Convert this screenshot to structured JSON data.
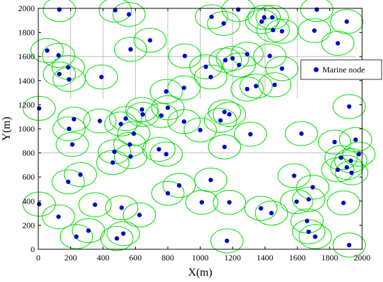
{
  "chart_data": {
    "type": "scatter",
    "xlabel": "X(m)",
    "ylabel": "Y(m)",
    "xlim": [
      0,
      2000
    ],
    "ylim": [
      0,
      2000
    ],
    "xticks": [
      0,
      200,
      400,
      600,
      800,
      1000,
      1200,
      1400,
      1600,
      1800,
      2000
    ],
    "yticks": [
      0,
      200,
      400,
      600,
      800,
      1000,
      1200,
      1400,
      1600,
      1800,
      2000
    ],
    "legend": {
      "position": "right",
      "entries": [
        "Marine node"
      ]
    },
    "colors": {
      "node": "#0000cc",
      "range": "#00dd00",
      "grid": "#b0b0b0",
      "axis": "#000000"
    },
    "range_radius": 100,
    "grid_lines": {
      "vertical": [
        {
          "x": 200,
          "y0": 1250,
          "y1": 2000
        },
        {
          "x": 400,
          "y0": 1250,
          "y1": 2000
        },
        {
          "x": 600,
          "y0": 1250,
          "y1": 2000
        },
        {
          "x": 800,
          "y0": 1250,
          "y1": 2000
        },
        {
          "x": 1000,
          "y0": 1250,
          "y1": 2000
        },
        {
          "x": 1200,
          "y0": 1250,
          "y1": 2000
        },
        {
          "x": 1400,
          "y0": 1250,
          "y1": 2000
        },
        {
          "x": 1600,
          "y0": 1250,
          "y1": 2000
        }
      ],
      "horizontal": [
        {
          "y": 1600,
          "x0": 0,
          "x1": 1960
        },
        {
          "y": 800,
          "x0": 0,
          "x1": 2000
        }
      ]
    },
    "series": [
      {
        "name": "Marine node",
        "points": [
          {
            "x": 130,
            "y": 1990
          },
          {
            "x": 475,
            "y": 1985
          },
          {
            "x": 560,
            "y": 1950
          },
          {
            "x": 1070,
            "y": 1930
          },
          {
            "x": 1145,
            "y": 1875
          },
          {
            "x": 1235,
            "y": 1990
          },
          {
            "x": 1395,
            "y": 1925
          },
          {
            "x": 1445,
            "y": 1925
          },
          {
            "x": 1380,
            "y": 1890
          },
          {
            "x": 1450,
            "y": 1820
          },
          {
            "x": 1505,
            "y": 1810
          },
          {
            "x": 1705,
            "y": 1815
          },
          {
            "x": 1720,
            "y": 1990
          },
          {
            "x": 1905,
            "y": 1890
          },
          {
            "x": 55,
            "y": 1650
          },
          {
            "x": 125,
            "y": 1610
          },
          {
            "x": 570,
            "y": 1660
          },
          {
            "x": 690,
            "y": 1735
          },
          {
            "x": 905,
            "y": 1605
          },
          {
            "x": 1850,
            "y": 1710
          },
          {
            "x": 185,
            "y": 1510
          },
          {
            "x": 130,
            "y": 1455
          },
          {
            "x": 190,
            "y": 1410
          },
          {
            "x": 390,
            "y": 1430
          },
          {
            "x": 1035,
            "y": 1515
          },
          {
            "x": 1065,
            "y": 1430
          },
          {
            "x": 1155,
            "y": 1570
          },
          {
            "x": 1200,
            "y": 1585
          },
          {
            "x": 1240,
            "y": 1530
          },
          {
            "x": 1290,
            "y": 1620
          },
          {
            "x": 1430,
            "y": 1605
          },
          {
            "x": 1505,
            "y": 1500
          },
          {
            "x": 790,
            "y": 1310
          },
          {
            "x": 900,
            "y": 1340
          },
          {
            "x": 1290,
            "y": 1330
          },
          {
            "x": 1345,
            "y": 1355
          },
          {
            "x": 1460,
            "y": 1365
          },
          {
            "x": 1920,
            "y": 1185
          },
          {
            "x": 5,
            "y": 1170
          },
          {
            "x": 640,
            "y": 1160
          },
          {
            "x": 645,
            "y": 1120
          },
          {
            "x": 760,
            "y": 1110
          },
          {
            "x": 800,
            "y": 1175
          },
          {
            "x": 1150,
            "y": 1140
          },
          {
            "x": 1180,
            "y": 1120
          },
          {
            "x": 1125,
            "y": 1070
          },
          {
            "x": 1000,
            "y": 990
          },
          {
            "x": 900,
            "y": 1060
          },
          {
            "x": 380,
            "y": 1065
          },
          {
            "x": 540,
            "y": 1085
          },
          {
            "x": 510,
            "y": 1040
          },
          {
            "x": 220,
            "y": 1080
          },
          {
            "x": 190,
            "y": 1000
          },
          {
            "x": 590,
            "y": 960
          },
          {
            "x": 565,
            "y": 870
          },
          {
            "x": 570,
            "y": 770
          },
          {
            "x": 210,
            "y": 870
          },
          {
            "x": 470,
            "y": 810
          },
          {
            "x": 460,
            "y": 720
          },
          {
            "x": 745,
            "y": 830
          },
          {
            "x": 790,
            "y": 790
          },
          {
            "x": 1310,
            "y": 955
          },
          {
            "x": 1150,
            "y": 850
          },
          {
            "x": 1625,
            "y": 960
          },
          {
            "x": 1830,
            "y": 890
          },
          {
            "x": 1870,
            "y": 760
          },
          {
            "x": 1930,
            "y": 735
          },
          {
            "x": 1960,
            "y": 910
          },
          {
            "x": 1980,
            "y": 790
          },
          {
            "x": 1905,
            "y": 680
          },
          {
            "x": 1850,
            "y": 660
          },
          {
            "x": 1935,
            "y": 635
          },
          {
            "x": 260,
            "y": 620
          },
          {
            "x": 185,
            "y": 560
          },
          {
            "x": 870,
            "y": 530
          },
          {
            "x": 800,
            "y": 465
          },
          {
            "x": 1065,
            "y": 575
          },
          {
            "x": 1580,
            "y": 610
          },
          {
            "x": 1695,
            "y": 515
          },
          {
            "x": 1670,
            "y": 415
          },
          {
            "x": 1885,
            "y": 385
          },
          {
            "x": 5,
            "y": 375
          },
          {
            "x": 350,
            "y": 370
          },
          {
            "x": 515,
            "y": 345
          },
          {
            "x": 1010,
            "y": 390
          },
          {
            "x": 1180,
            "y": 390
          },
          {
            "x": 1375,
            "y": 340
          },
          {
            "x": 1440,
            "y": 300
          },
          {
            "x": 1595,
            "y": 395
          },
          {
            "x": 125,
            "y": 270
          },
          {
            "x": 625,
            "y": 285
          },
          {
            "x": 310,
            "y": 155
          },
          {
            "x": 235,
            "y": 105
          },
          {
            "x": 485,
            "y": 90
          },
          {
            "x": 525,
            "y": 130
          },
          {
            "x": 1165,
            "y": 70
          },
          {
            "x": 1660,
            "y": 235
          },
          {
            "x": 1670,
            "y": 145
          },
          {
            "x": 1710,
            "y": 105
          },
          {
            "x": 1920,
            "y": 35
          }
        ]
      }
    ]
  }
}
